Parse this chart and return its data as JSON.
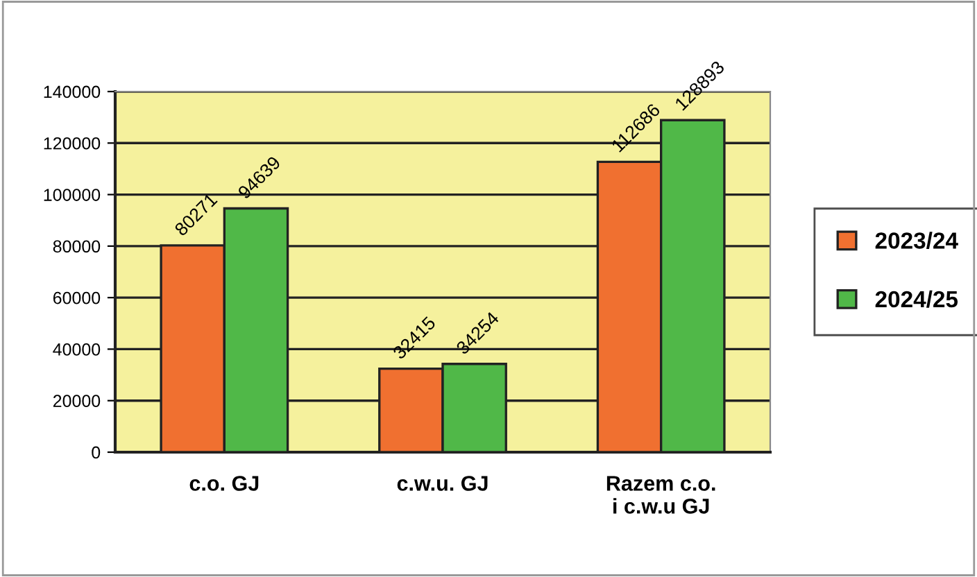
{
  "chart_data": {
    "type": "bar",
    "categories": [
      "c.o. GJ",
      "c.w.u. GJ",
      "Razem c.o.\ni c.w.u GJ"
    ],
    "series": [
      {
        "name": "2023/24",
        "color": "#f07030",
        "values": [
          80271,
          32415,
          112686
        ]
      },
      {
        "name": "2024/25",
        "color": "#50b848",
        "values": [
          94639,
          34254,
          128893
        ]
      }
    ],
    "ylim": [
      0,
      140000
    ],
    "yticks": [
      0,
      20000,
      40000,
      60000,
      80000,
      100000,
      120000,
      140000
    ],
    "grid": "y",
    "legend": "right",
    "data_labels": true
  }
}
